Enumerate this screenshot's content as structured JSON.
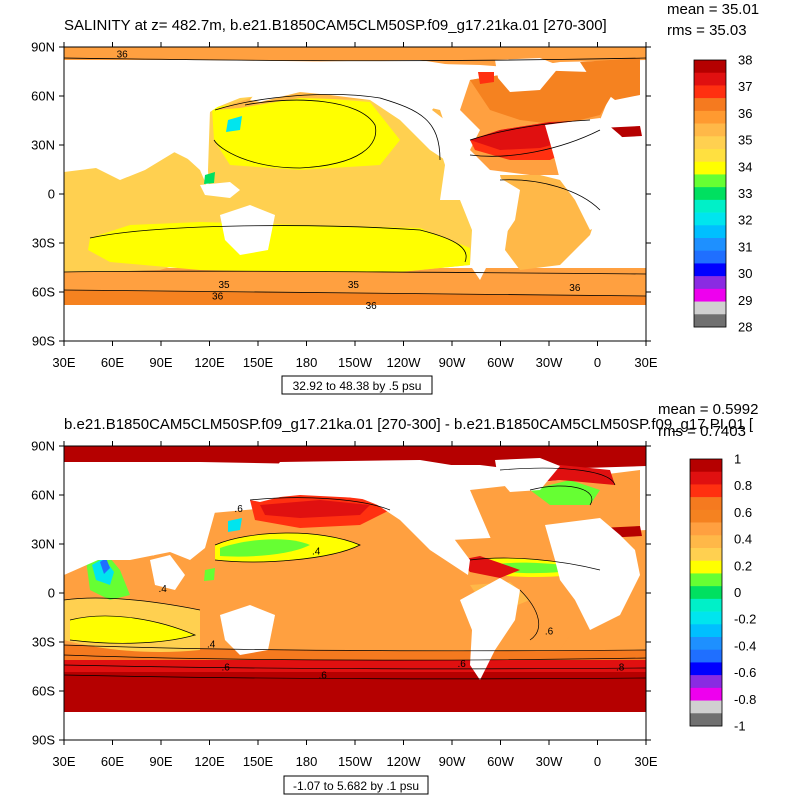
{
  "colors": {
    "land": "#ffffff",
    "frame": "#000000",
    "contour": "#000000",
    "salinity_ramp": [
      "#707070",
      "#d0d0d0",
      "#ee00ee",
      "#8a2be2",
      "#0000ff",
      "#1f6fff",
      "#1e90ff",
      "#00bfff",
      "#00e5ee",
      "#00f0c8",
      "#00e060",
      "#66ff33",
      "#ffff00",
      "#ffe040",
      "#ffd050",
      "#ffb848",
      "#ffa040",
      "#f58220",
      "#f57a1f",
      "#ff3010",
      "#e01010",
      "#b50000"
    ],
    "anomaly_ramp": [
      "#707070",
      "#d0d0d0",
      "#ee00ee",
      "#8a2be2",
      "#0000ff",
      "#1f6fff",
      "#1e90ff",
      "#00bfff",
      "#00e5ee",
      "#00f0c8",
      "#00e060",
      "#66ff33",
      "#ffff00",
      "#ffe040",
      "#ffd050",
      "#ffb848",
      "#ffa040",
      "#f58220",
      "#f57a1f",
      "#ff3010",
      "#e01010",
      "#b50000"
    ]
  },
  "panels": [
    {
      "id": "top",
      "title": "SALINITY at z= 482.7m, b.e21.B1850CAM5CLM50SP.f09_g17.21ka.01 [270-300]",
      "stats": [
        "mean = 35.01",
        "rms = 35.03"
      ],
      "info_box": "32.92 to 48.38 by .5 psu",
      "lat_labels": [
        "90N",
        "60N",
        "30N",
        "0",
        "30S",
        "60S",
        "90S"
      ],
      "lon_labels": [
        "30E",
        "60E",
        "90E",
        "120E",
        "150E",
        "180",
        "150W",
        "120W",
        "90W",
        "60W",
        "30W",
        "0",
        "30E"
      ],
      "colorbar_labels": [
        "38",
        "37",
        "36",
        "35",
        "34",
        "33",
        "32",
        "31",
        "30",
        "29",
        "28"
      ],
      "colorbar_colors": [
        "#b50000",
        "#e01010",
        "#ff3010",
        "#f57a1f",
        "#ff9a30",
        "#ffb848",
        "#ffd050",
        "#ffe040",
        "#ffff00",
        "#66ff33",
        "#00e060",
        "#00f0c8",
        "#00e5ee",
        "#00bfff",
        "#1e90ff",
        "#1f6fff",
        "#0000ff",
        "#8a2be2",
        "#ee00ee",
        "#d0d0d0",
        "#707070"
      ],
      "contour_labels": [
        "36",
        "35",
        "35",
        "36",
        "36",
        "36"
      ],
      "contour_label_lonlat": [
        [
          66,
          86
        ],
        [
          129,
          -55
        ],
        [
          209,
          -55
        ],
        [
          125,
          -62
        ],
        [
          220,
          -68
        ],
        [
          346,
          -57
        ]
      ]
    },
    {
      "id": "bottom",
      "title": "b.e21.B1850CAM5CLM50SP.f09_g17.21ka.01 [270-300] - b.e21.B1850CAM5CLM50SP.f09_g17.PI.01 [",
      "stats": [
        "mean = 0.5992",
        "rms = 0.7403"
      ],
      "info_box": "-1.07 to 5.682 by .1 psu",
      "lat_labels": [
        "90N",
        "60N",
        "30N",
        "0",
        "30S",
        "60S",
        "90S"
      ],
      "lon_labels": [
        "30E",
        "60E",
        "90E",
        "120E",
        "150E",
        "180",
        "150W",
        "120W",
        "90W",
        "60W",
        "30W",
        "0",
        "30E"
      ],
      "colorbar_labels": [
        "1",
        "0.8",
        "0.6",
        "0.4",
        "0.2",
        "0",
        "-0.2",
        "-0.4",
        "-0.6",
        "-0.8",
        "-1"
      ],
      "colorbar_colors": [
        "#b50000",
        "#e01010",
        "#ff3010",
        "#f57a1f",
        "#f58220",
        "#ffa040",
        "#ffb848",
        "#ffd050",
        "#ffff00",
        "#66ff33",
        "#00e060",
        "#00f0c8",
        "#00e5ee",
        "#00bfff",
        "#1e90ff",
        "#1f6fff",
        "#0000ff",
        "#8a2be2",
        "#ee00ee",
        "#d0d0d0",
        "#707070"
      ],
      "contour_labels": [
        ".4",
        ".4",
        ".4",
        ".6",
        ".6",
        ".6",
        ".6",
        ".6",
        ".8"
      ],
      "contour_label_lonlat": [
        [
          91,
          3
        ],
        [
          121,
          -31
        ],
        [
          186,
          26
        ],
        [
          330,
          -23
        ],
        [
          130,
          -45
        ],
        [
          190,
          -50
        ],
        [
          276,
          -43
        ],
        [
          138,
          52
        ],
        [
          374,
          -45
        ]
      ]
    }
  ]
}
